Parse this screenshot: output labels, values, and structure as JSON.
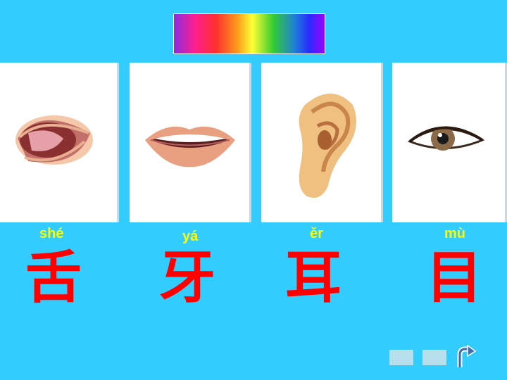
{
  "slide": {
    "background_color": "#33ccff",
    "spectrum_bar": "rainbow-gradient"
  },
  "cards": [
    {
      "icon": "tongue-mouth-picture",
      "pinyin": "shé",
      "hanzi": "舌"
    },
    {
      "icon": "teeth-mouth-picture",
      "pinyin": "yá",
      "hanzi": "牙"
    },
    {
      "icon": "ear-picture",
      "pinyin": "ěr",
      "hanzi": "耳"
    },
    {
      "icon": "eye-picture",
      "pinyin": "mù",
      "hanzi": "目"
    }
  ],
  "nav": {
    "prev_icon": "blank-button",
    "next_icon": "blank-button",
    "return_icon": "return-arrow-icon",
    "button_color": "#b8e0ec"
  }
}
